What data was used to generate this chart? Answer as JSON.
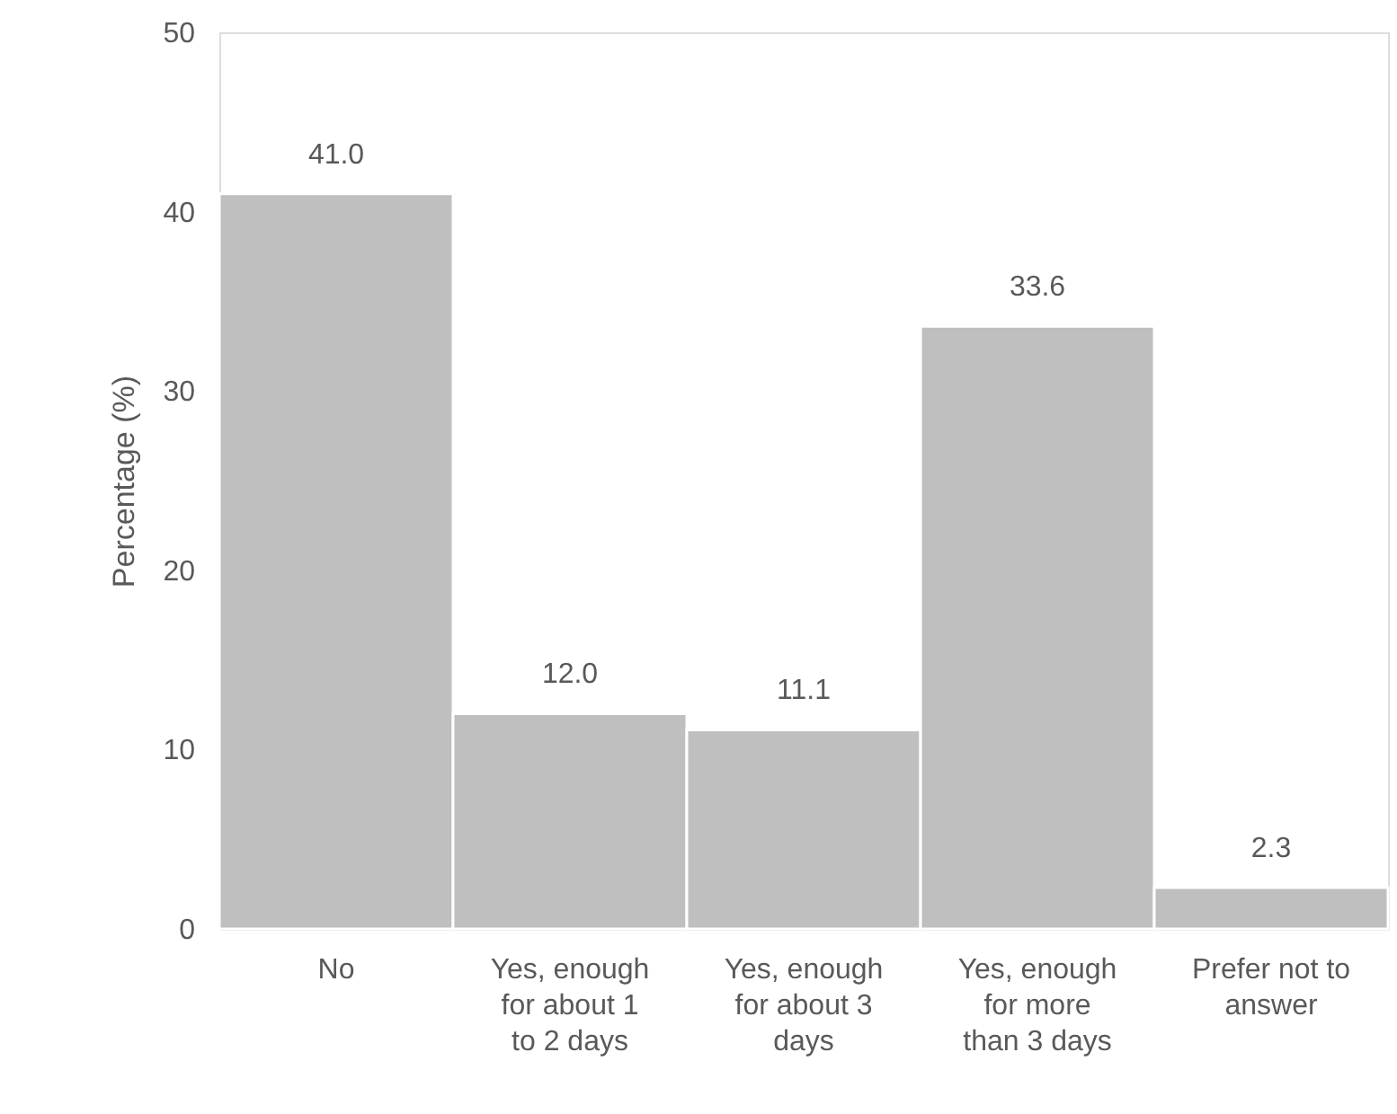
{
  "chart_data": {
    "type": "bar",
    "ylabel": "Percentage (%)",
    "categories": [
      "No",
      "Yes, enough\nfor about 1\nto 2 days",
      "Yes, enough\nfor about 3\ndays",
      "Yes, enough\nfor more\nthan 3 days",
      "Prefer not to\nanswer"
    ],
    "values": [
      41.0,
      12.0,
      11.1,
      33.6,
      2.3
    ],
    "color": "#bfbfbf",
    "ylim": [
      0,
      50
    ],
    "yticks": [
      0,
      10,
      20,
      30,
      40,
      50
    ],
    "grid": false,
    "value_labels": [
      "41.0",
      "12.0",
      "11.1",
      "33.6",
      "2.3"
    ]
  }
}
